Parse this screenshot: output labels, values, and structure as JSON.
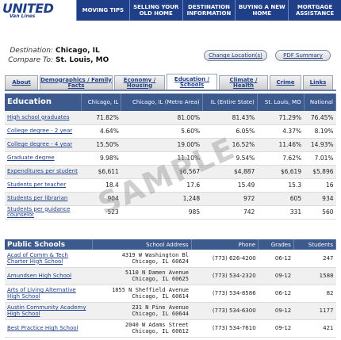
{
  "logo": {
    "main": "UNITED",
    "sub": "Van Lines"
  },
  "nav": [
    {
      "label": "MOVING TIPS"
    },
    {
      "label": "SELLING YOUR OLD HOME"
    },
    {
      "label": "DESTINATION INFORMATION"
    },
    {
      "label": "BUYING A NEW HOME"
    },
    {
      "label": "MORTGAGE ASSISTANCE"
    }
  ],
  "destination": {
    "label": "Destination:",
    "value": "Chicago, IL",
    "compare_label": "Compare To:",
    "compare_value": "St. Louis, MO"
  },
  "buttons": {
    "change": "Change Location(s)",
    "pdf": "PDF Summary"
  },
  "tabs": [
    {
      "label": "About"
    },
    {
      "label": "Demographics / Family Facts"
    },
    {
      "label": "Economy / Housing"
    },
    {
      "label": "Education / Schools"
    },
    {
      "label": "Climate / Health"
    },
    {
      "label": "Crime"
    },
    {
      "label": "Links"
    }
  ],
  "education": {
    "header": [
      "Education",
      "Chicago, IL",
      "Chicago, IL (Metro Area)",
      "IL (Entire State)",
      "St. Louis, MO",
      "National"
    ],
    "rows": [
      {
        "label": "High school graduates",
        "link": true,
        "values": [
          "71.82%",
          "81.00%",
          "81.43%",
          "71.29%",
          "76.45%"
        ]
      },
      {
        "label": "College degree - 2 year",
        "link": true,
        "values": [
          "4.64%",
          "5.60%",
          "6.05%",
          "4.37%",
          "8.19%"
        ]
      },
      {
        "label": "College degree - 4 year",
        "link": true,
        "values": [
          "15.50%",
          "19.00%",
          "16.52%",
          "11.46%",
          "14.93%"
        ]
      },
      {
        "label": "Graduate degree",
        "link": true,
        "values": [
          "9.98%",
          "11.10%",
          "9.54%",
          "7.62%",
          "7.01%"
        ]
      },
      {
        "label": "Expenditures per student",
        "link": true,
        "values": [
          "$6,611",
          "$6,567",
          "$4,887",
          "$6,619",
          "$5,896"
        ]
      },
      {
        "label": "Students per teacher",
        "link": true,
        "values": [
          "18.4",
          "17.6",
          "15.49",
          "15.3",
          "16"
        ]
      },
      {
        "label": "Students per librarian",
        "link": true,
        "values": [
          "904",
          "1,248",
          "972",
          "605",
          "934"
        ]
      },
      {
        "label": "Students per guidance counselor",
        "link": true,
        "values": [
          "523",
          "985",
          "742",
          "331",
          "560"
        ]
      }
    ]
  },
  "schools": {
    "header": [
      "Public Schools",
      "School Address",
      "Phone",
      "Grades",
      "Students"
    ],
    "rows": [
      {
        "name": "Acad of Comm & Tech Charter High School",
        "addr1": "4319 W Washington Bl",
        "addr2": "Chicago, IL 60624",
        "phone": "(773) 626-4200",
        "grades": "06-12",
        "students": "247"
      },
      {
        "name": "Amundsen High School",
        "addr1": "5110 N Damen Avenue",
        "addr2": "Chicago, IL 60625",
        "phone": "(773) 534-2320",
        "grades": "09-12",
        "students": "1588"
      },
      {
        "name": "Arts of Living Alternative High School",
        "addr1": "1855 N Sheffield Avenue",
        "addr2": "Chicago, IL 60614",
        "phone": "(773) 534-8586",
        "grades": "06-12",
        "students": "82"
      },
      {
        "name": "Austin Community Academy High School",
        "addr1": "231 N Pine Avenue",
        "addr2": "Chicago, IL 60644",
        "phone": "(773) 534-6300",
        "grades": "09-12",
        "students": "1177"
      },
      {
        "name": "Best Practice High School",
        "addr1": "2040 W Adams Street",
        "addr2": "Chicago, IL 60612",
        "phone": "(773) 534-7610",
        "grades": "09-12",
        "students": "421"
      }
    ]
  },
  "watermark": "SAMPLE"
}
